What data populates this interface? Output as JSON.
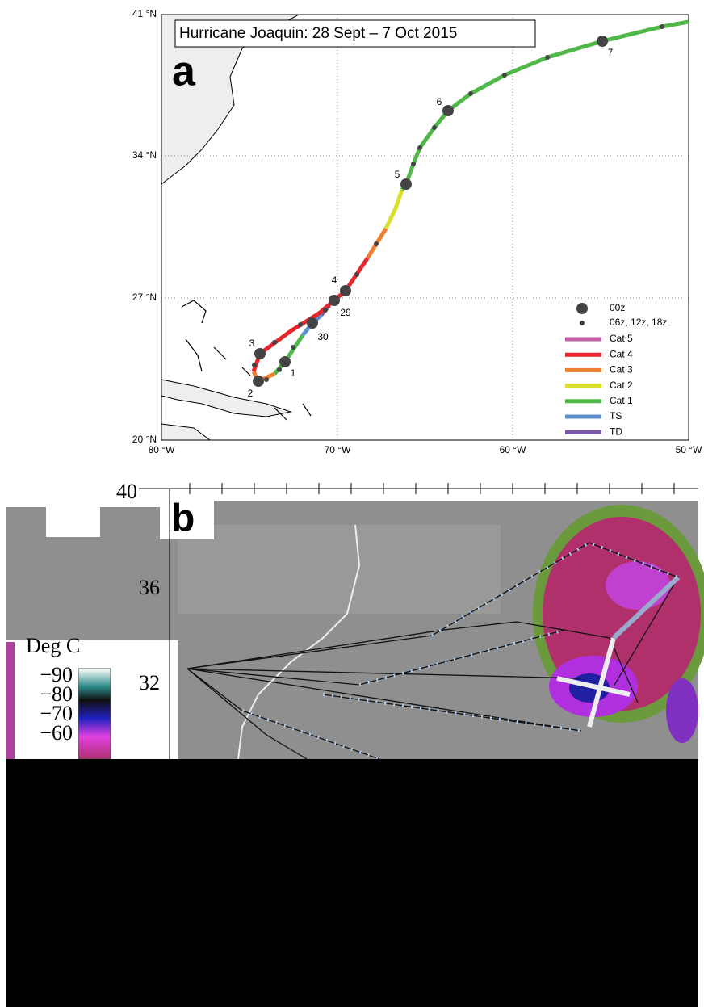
{
  "panel_a": {
    "label": "a",
    "title": "Hurricane Joaquin: 28 Sept – 7 Oct 2015",
    "yticks": [
      "41 °N",
      "34 °N",
      "27 °N",
      "20 °N"
    ],
    "xticks": [
      "80 °W",
      "70 °W",
      "60 °W",
      "50 °W"
    ],
    "day_labels": [
      "29",
      "30",
      "1",
      "2",
      "3",
      "4",
      "5",
      "6",
      "7"
    ],
    "legend": [
      "00z",
      "06z, 12z, 18z",
      "Cat 5",
      "Cat 4",
      "Cat 3",
      "Cat 2",
      "Cat 1",
      "TS",
      "TD"
    ]
  },
  "panel_b": {
    "label": "b",
    "yticks": [
      "40",
      "36",
      "32"
    ],
    "colorbar_title": "Deg C",
    "colorbar_ticks": [
      "−90",
      "−80",
      "−70",
      "−60"
    ]
  }
}
